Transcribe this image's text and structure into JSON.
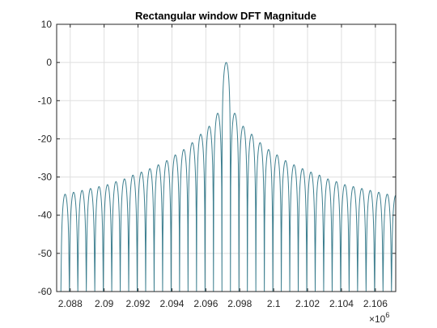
{
  "chart_data": {
    "type": "line",
    "title": "Rectangular window DFT Magnitude",
    "xlabel": "",
    "ylabel": "",
    "xlim": [
      2.0872,
      2.1072
    ],
    "ylim": [
      -60,
      10
    ],
    "x_scale_label": "×10",
    "x_scale_exponent": "6",
    "x_ticks": [
      2.088,
      2.09,
      2.092,
      2.094,
      2.096,
      2.098,
      2.1,
      2.102,
      2.104,
      2.106
    ],
    "x_tick_labels": [
      "2.088",
      "2.09",
      "2.092",
      "2.094",
      "2.096",
      "2.098",
      "2.1",
      "2.102",
      "2.104",
      "2.106"
    ],
    "y_ticks": [
      10,
      0,
      -10,
      -20,
      -30,
      -40,
      -50,
      -60
    ],
    "y_tick_labels": [
      "10",
      "0",
      "-10",
      "-20",
      "-30",
      "-40",
      "-50",
      "-60"
    ],
    "grid": true,
    "series": [
      {
        "color": "#3d7f8f",
        "center": 2.0972,
        "lobe_width": 0.0005,
        "peak_db": 0,
        "peaks_db": [
          -34.5,
          -34,
          -33.5,
          -33,
          -32.5,
          -32,
          -31.2,
          -30.5,
          -29.5,
          -28.7,
          -27.8,
          -26.8,
          -25.7,
          -24.2,
          -22.8,
          -21,
          -18.8,
          -16.7,
          -13.3,
          0,
          -13.3,
          -16.7,
          -18.8,
          -21,
          -22.8,
          -24.2,
          -25.7,
          -26.8,
          -27.8,
          -28.7,
          -29.5,
          -30.5,
          -31.2,
          -32,
          -32.5,
          -33,
          -33.5,
          -34,
          -34.5,
          -34.8
        ],
        "floor_db": -60
      }
    ],
    "colors": {
      "line": "#3d7f8f",
      "grid": "#dfdfdf",
      "axis": "#262626"
    }
  }
}
